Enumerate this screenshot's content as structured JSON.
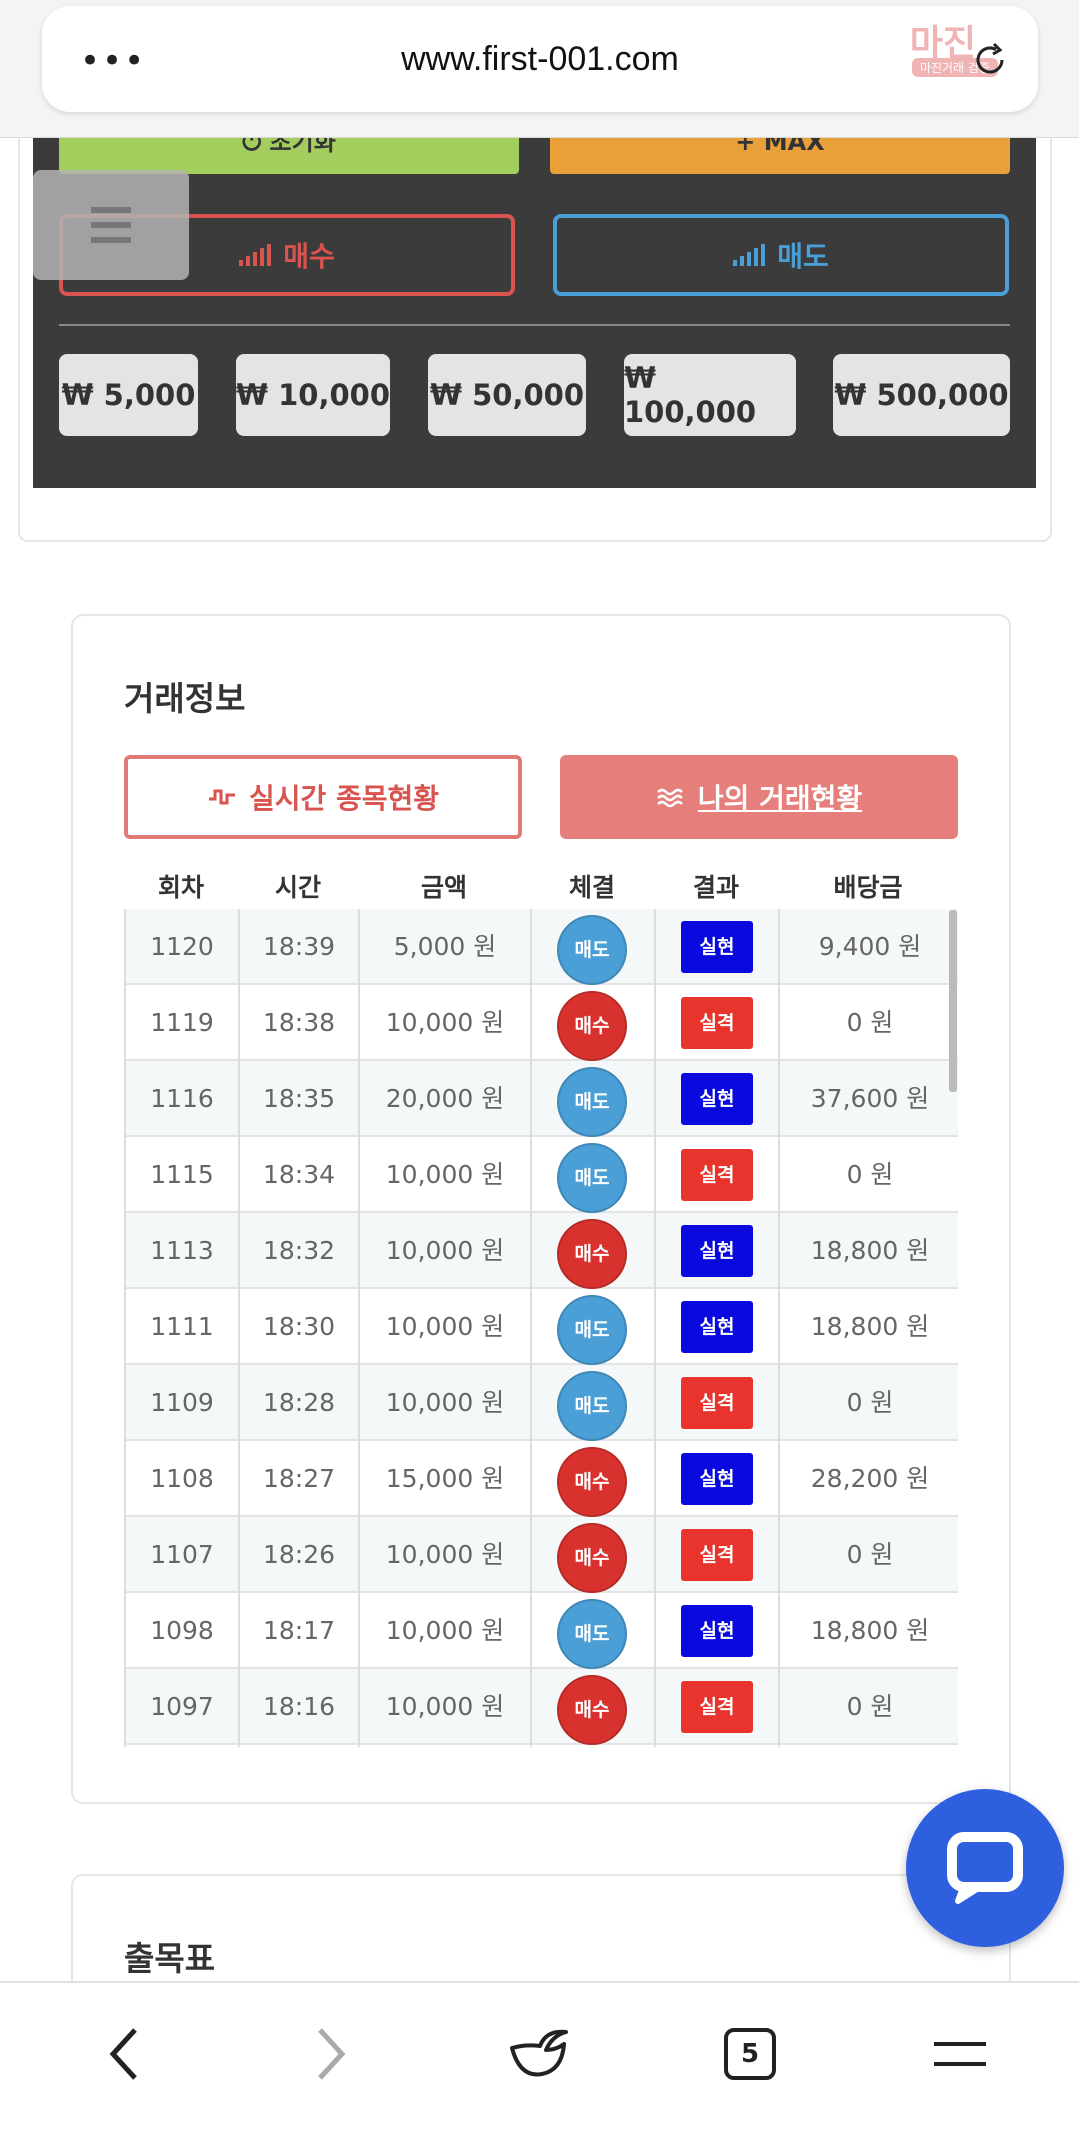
{
  "browser": {
    "url": "www.first-001.com",
    "menu_dots": "•••",
    "watermark_text": "마진",
    "watermark_sub": "마진거래 검증",
    "tab_count": "5"
  },
  "panel": {
    "reset_label": "초기화",
    "max_label": "MAX",
    "buy_label": "매수",
    "sell_label": "매도",
    "amounts": [
      "₩ 5,000",
      "₩ 10,000",
      "₩ 50,000",
      "₩ 100,000",
      "₩ 500,000"
    ]
  },
  "trade_info": {
    "title": "거래정보",
    "tab_live": "실시간 종목현황",
    "tab_mine": "나의 거래현황",
    "columns": [
      "회차",
      "시간",
      "금액",
      "체결",
      "결과",
      "배당금"
    ],
    "rows": [
      {
        "round": "1120",
        "time": "18:39",
        "amount": "5,000 원",
        "side": "매도",
        "side_type": "sell",
        "result": "실현",
        "result_type": "win",
        "payout": "9,400 원"
      },
      {
        "round": "1119",
        "time": "18:38",
        "amount": "10,000 원",
        "side": "매수",
        "side_type": "buy",
        "result": "실격",
        "result_type": "lose",
        "payout": "0 원"
      },
      {
        "round": "1116",
        "time": "18:35",
        "amount": "20,000 원",
        "side": "매도",
        "side_type": "sell",
        "result": "실현",
        "result_type": "win",
        "payout": "37,600 원"
      },
      {
        "round": "1115",
        "time": "18:34",
        "amount": "10,000 원",
        "side": "매도",
        "side_type": "sell",
        "result": "실격",
        "result_type": "lose",
        "payout": "0 원"
      },
      {
        "round": "1113",
        "time": "18:32",
        "amount": "10,000 원",
        "side": "매수",
        "side_type": "buy",
        "result": "실현",
        "result_type": "win",
        "payout": "18,800 원"
      },
      {
        "round": "1111",
        "time": "18:30",
        "amount": "10,000 원",
        "side": "매도",
        "side_type": "sell",
        "result": "실현",
        "result_type": "win",
        "payout": "18,800 원"
      },
      {
        "round": "1109",
        "time": "18:28",
        "amount": "10,000 원",
        "side": "매도",
        "side_type": "sell",
        "result": "실격",
        "result_type": "lose",
        "payout": "0 원"
      },
      {
        "round": "1108",
        "time": "18:27",
        "amount": "15,000 원",
        "side": "매수",
        "side_type": "buy",
        "result": "실현",
        "result_type": "win",
        "payout": "28,200 원"
      },
      {
        "round": "1107",
        "time": "18:26",
        "amount": "10,000 원",
        "side": "매수",
        "side_type": "buy",
        "result": "실격",
        "result_type": "lose",
        "payout": "0 원"
      },
      {
        "round": "1098",
        "time": "18:17",
        "amount": "10,000 원",
        "side": "매도",
        "side_type": "sell",
        "result": "실현",
        "result_type": "win",
        "payout": "18,800 원"
      },
      {
        "round": "1097",
        "time": "18:16",
        "amount": "10,000 원",
        "side": "매수",
        "side_type": "buy",
        "result": "실격",
        "result_type": "lose",
        "payout": "0 원"
      },
      {
        "round": "",
        "time": "",
        "amount": "",
        "side": "",
        "side_type": "sell",
        "result": "",
        "result_type": "",
        "payout": ""
      }
    ]
  },
  "chart_section": {
    "title": "출목표"
  },
  "colors": {
    "buy": "#d9322e",
    "sell": "#4a9fd6",
    "win": "#0a0adf",
    "lose": "#e8342c",
    "accent": "#e67e7b",
    "chat": "#2e5fde"
  },
  "icons": {
    "reset": "power-icon",
    "max": "plus-icon",
    "signal": "signal-bars-icon",
    "live": "pulse-icon",
    "mine": "wave-icon",
    "chat": "chat-bubble-icon"
  }
}
